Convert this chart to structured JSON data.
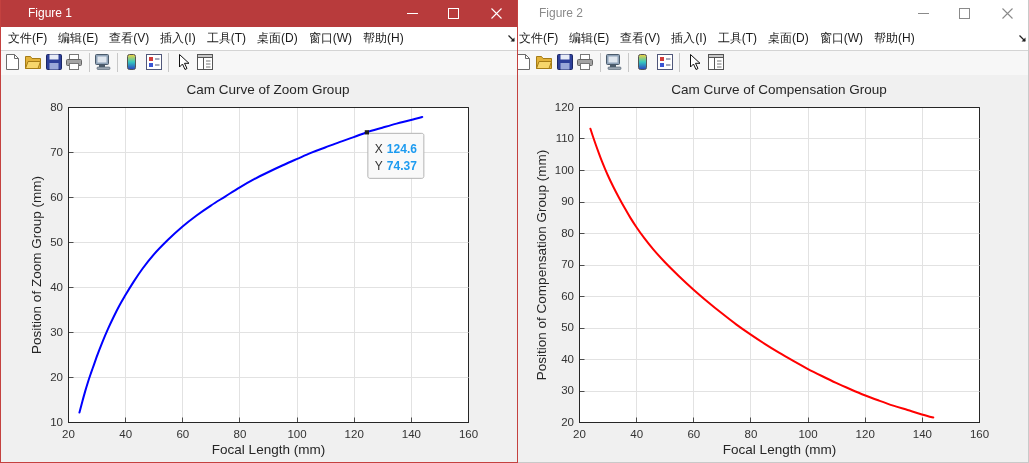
{
  "chart_data": [
    {
      "type": "other",
      "title": "Figure 1",
      "annotations": [
        "文件(F)",
        "编辑(E)",
        "查看(V)",
        "插入(I)",
        "工具(T)",
        "桌面(D)",
        "窗口(W)",
        "帮助(H)"
      ]
    },
    {
      "type": "line",
      "title": "Cam Curve of Zoom Group",
      "xlabel": "Focal Length (mm)",
      "ylabel": "Position of Zoom Group (mm)",
      "x": [
        24,
        25,
        26,
        27,
        28,
        29,
        30,
        32,
        34,
        36,
        38,
        40,
        43,
        46,
        50,
        55,
        60,
        65,
        70,
        75,
        80,
        85,
        90,
        95,
        100,
        105,
        110,
        115,
        120,
        124.6,
        130,
        135,
        140,
        144
      ],
      "series": [
        {
          "color": "#0000ff",
          "values": [
            12.1,
            14.5,
            16.8,
            18.9,
            20.8,
            22.6,
            24.4,
            27.7,
            30.7,
            33.4,
            35.9,
            38.1,
            41.2,
            44.0,
            47.2,
            50.5,
            53.4,
            55.9,
            58.1,
            60.1,
            62.1,
            63.9,
            65.5,
            67.0,
            68.4,
            69.8,
            71.0,
            72.2,
            73.3,
            74.4,
            75.4,
            76.3,
            77.1,
            77.8
          ]
        }
      ],
      "xlim": [
        20,
        160
      ],
      "xticks": [
        20,
        40,
        60,
        80,
        100,
        120,
        140,
        160
      ],
      "ylim": [
        10,
        80
      ],
      "yticks": [
        10,
        20,
        30,
        40,
        50,
        60,
        70,
        80
      ],
      "grid": true,
      "annotations": [
        {
          "text": "X 124.6\nY 74.37",
          "x": 124.6,
          "y": 74.37
        }
      ]
    },
    {
      "type": "other",
      "title": "Figure 2",
      "annotations": [
        "文件(F)",
        "编辑(E)",
        "查看(V)",
        "插入(I)",
        "工具(T)",
        "桌面(D)",
        "窗口(W)",
        "帮助(H)"
      ]
    },
    {
      "type": "line",
      "title": "Cam Curve of Compensation Group",
      "xlabel": "Focal Length (mm)",
      "ylabel": "Position of Compensation Group (mm)",
      "x": [
        24,
        25,
        26,
        27,
        28,
        29,
        30,
        32,
        34,
        36,
        38,
        40,
        43,
        46,
        50,
        55,
        60,
        65,
        70,
        75,
        80,
        85,
        90,
        95,
        100,
        105,
        110,
        115,
        120,
        125,
        130,
        135,
        140,
        144
      ],
      "series": [
        {
          "color": "#ff0000",
          "values": [
            113.1,
            110.3,
            107.7,
            105.2,
            102.8,
            100.6,
            98.5,
            94.7,
            91.2,
            87.9,
            84.8,
            82.0,
            78.2,
            74.8,
            70.8,
            66.3,
            62.1,
            58.2,
            54.5,
            51.0,
            47.8,
            44.8,
            42.0,
            39.4,
            36.9,
            34.6,
            32.4,
            30.4,
            28.5,
            26.8,
            25.2,
            23.8,
            22.4,
            21.4
          ]
        }
      ],
      "xlim": [
        20,
        160
      ],
      "xticks": [
        20,
        40,
        60,
        80,
        100,
        120,
        140,
        160
      ],
      "ylim": [
        20,
        120
      ],
      "yticks": [
        20,
        30,
        40,
        50,
        60,
        70,
        80,
        90,
        100,
        110,
        120
      ],
      "grid": true
    }
  ]
}
